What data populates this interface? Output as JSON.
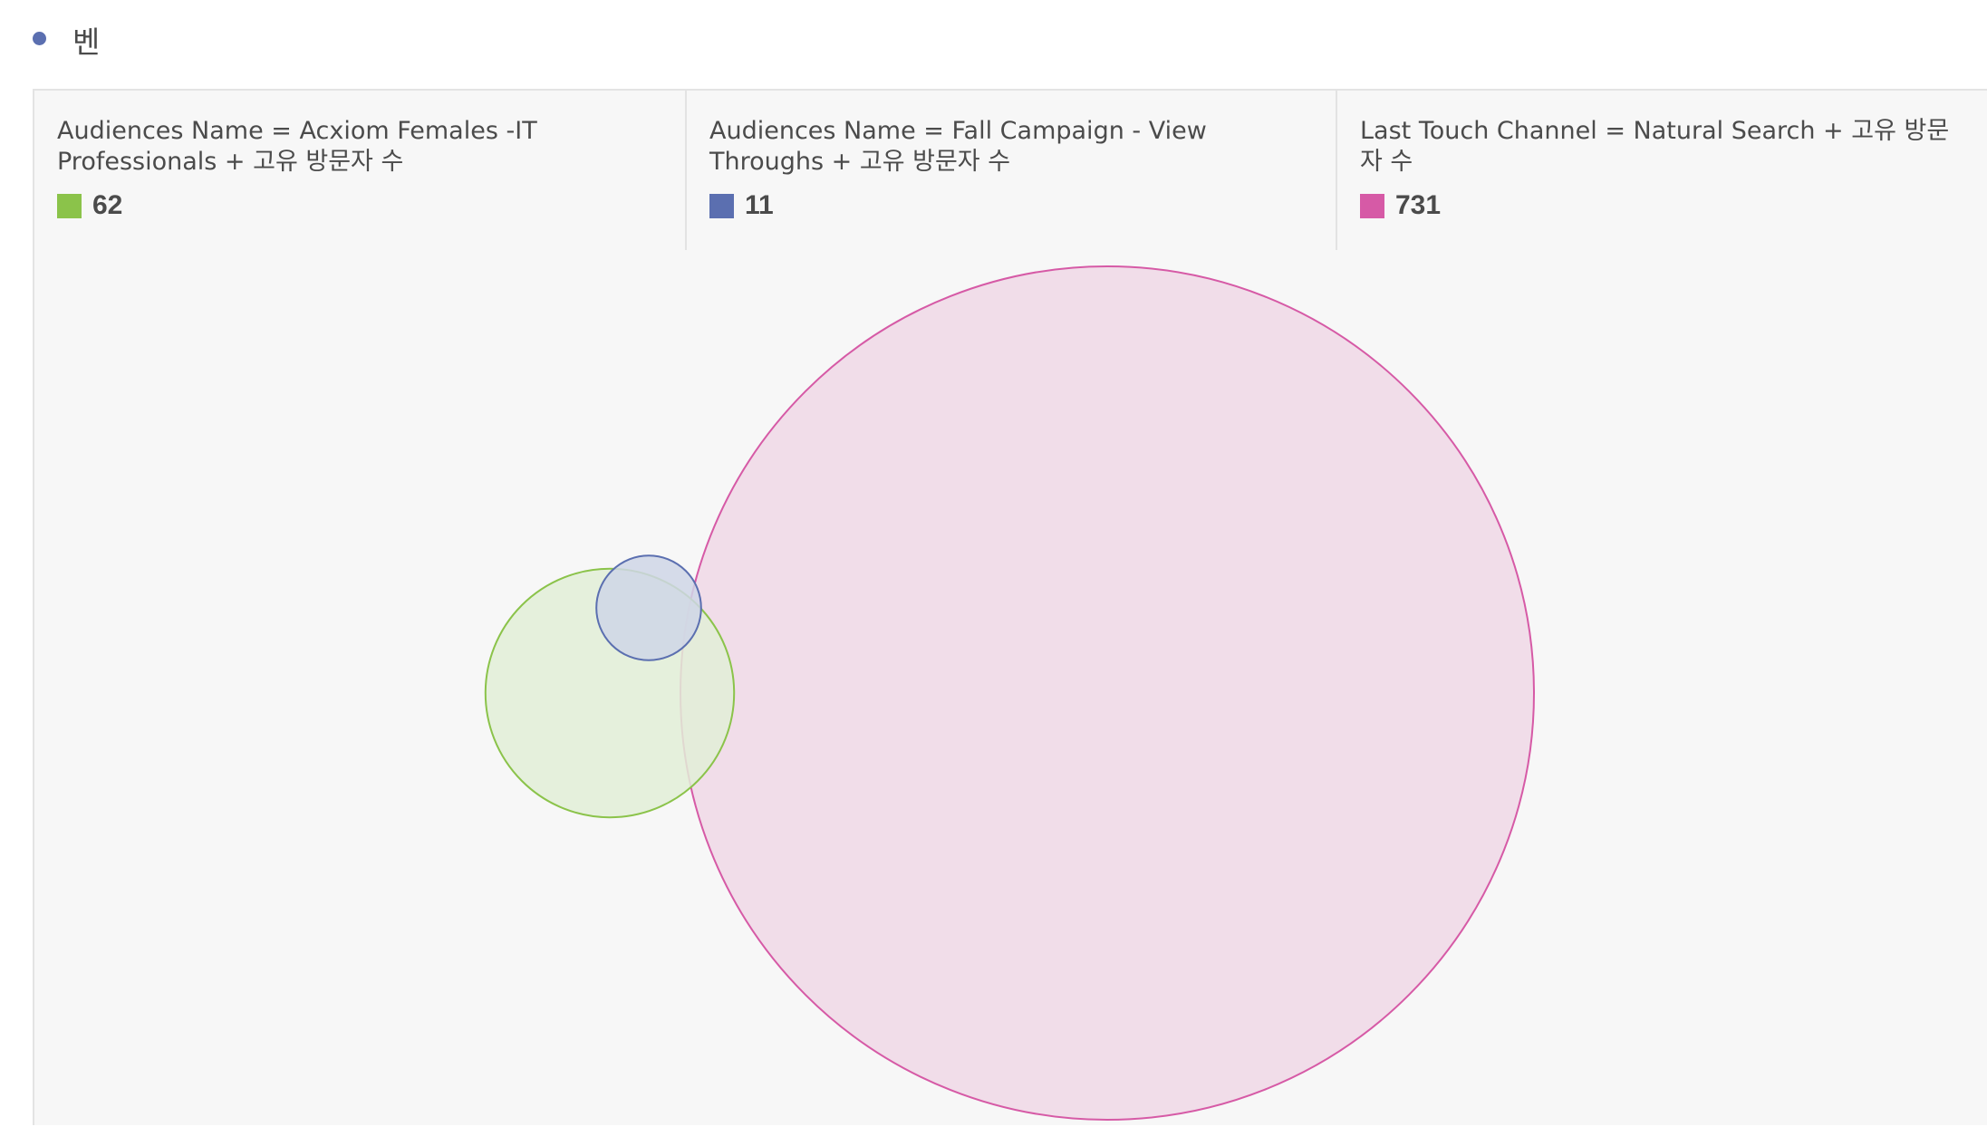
{
  "panel": {
    "title": "벤",
    "dot_color": "#5b6fb0"
  },
  "chart_data": {
    "type": "venn",
    "title": "",
    "sets": [
      {
        "label": "Audiences Name = Acxiom Females -IT Professionals + 고유 방문자 수",
        "value": "62",
        "count": 62,
        "color": "#8bc34a",
        "fill": "#e2efd7"
      },
      {
        "label": "Audiences Name = Fall Campaign - View Throughs + 고유 방문자 수",
        "value": "11",
        "count": 11,
        "color": "#5b6fb0",
        "fill": "#cfd6e6"
      },
      {
        "label": "Last Touch Channel = Natural Search + 고유 방문자 수",
        "value": "731",
        "count": 731,
        "color": "#d65aa6",
        "fill": "#f0d8e6"
      }
    ]
  }
}
